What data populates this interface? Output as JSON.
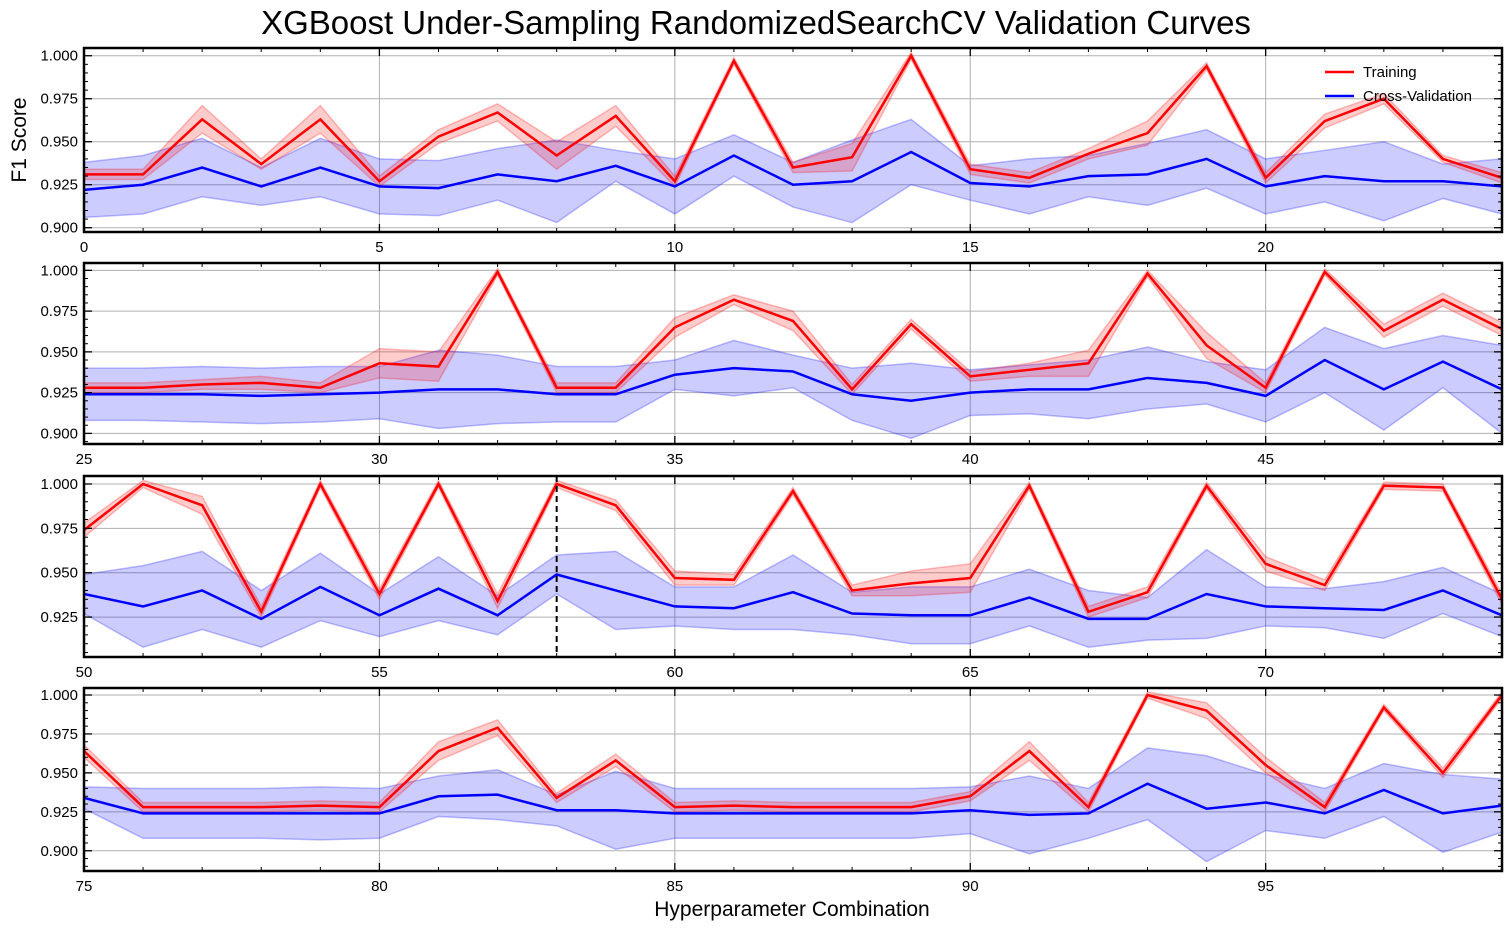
{
  "chart_data": {
    "type": "line",
    "title": "XGBoost Under-Sampling RandomizedSearchCV Validation Curves",
    "xlabel": "Hyperparameter Combination",
    "ylabel": "F1 Score",
    "grid": true,
    "legend": {
      "position": "top-right",
      "entries": [
        "Training",
        "Cross-Validation"
      ]
    },
    "colors": {
      "training": "#ff0000",
      "cv": "#0000ff",
      "training_band": "#ff0000",
      "cv_band": "#0000ff",
      "best_marker": "#000000"
    },
    "best_index": 58,
    "panels": [
      {
        "xlim": [
          0,
          24
        ],
        "ylim": [
          0.8975,
          1.0045
        ],
        "xticks": [
          0,
          5,
          10,
          15,
          20
        ],
        "yticks": [
          0.9,
          0.925,
          0.95,
          0.975,
          1.0
        ],
        "ytick_labels": [
          "0.900",
          "0.925",
          "0.950",
          "0.975",
          "1.000"
        ]
      },
      {
        "xlim": [
          25,
          49
        ],
        "ylim": [
          0.8935,
          1.0045
        ],
        "xticks": [
          25,
          30,
          35,
          40,
          45
        ],
        "yticks": [
          0.9,
          0.925,
          0.95,
          0.975,
          1.0
        ],
        "ytick_labels": [
          "0.900",
          "0.925",
          "0.950",
          "0.975",
          "1.000"
        ]
      },
      {
        "xlim": [
          50,
          74
        ],
        "ylim": [
          0.9025,
          1.0045
        ],
        "xticks": [
          50,
          55,
          60,
          65,
          70
        ],
        "yticks": [
          0.925,
          0.95,
          0.975,
          1.0
        ],
        "ytick_labels": [
          "0.925",
          "0.950",
          "0.975",
          "1.000"
        ]
      },
      {
        "xlim": [
          75,
          99
        ],
        "ylim": [
          0.887,
          1.0045
        ],
        "xticks": [
          75,
          80,
          85,
          90,
          95
        ],
        "yticks": [
          0.9,
          0.925,
          0.95,
          0.975,
          1.0
        ],
        "ytick_labels": [
          "0.900",
          "0.925",
          "0.950",
          "0.975",
          "1.000"
        ]
      }
    ],
    "series": [
      {
        "name": "Training",
        "values": [
          0.931,
          0.931,
          0.963,
          0.937,
          0.963,
          0.927,
          0.953,
          0.967,
          0.942,
          0.965,
          0.927,
          0.997,
          0.935,
          0.941,
          1.0,
          0.934,
          0.929,
          0.943,
          0.955,
          0.994,
          0.929,
          0.962,
          0.975,
          0.94,
          0.929,
          0.928,
          0.928,
          0.93,
          0.931,
          0.928,
          0.943,
          0.941,
          0.999,
          0.928,
          0.928,
          0.965,
          0.982,
          0.969,
          0.927,
          0.967,
          0.935,
          0.939,
          0.943,
          0.998,
          0.954,
          0.928,
          0.999,
          0.963,
          0.982,
          0.964,
          0.974,
          1.0,
          0.988,
          0.928,
          1.0,
          0.938,
          1.0,
          0.934,
          1.0,
          0.988,
          0.947,
          0.946,
          0.996,
          0.94,
          0.944,
          0.947,
          0.999,
          0.928,
          0.939,
          0.999,
          0.955,
          0.943,
          0.999,
          0.998,
          0.935,
          0.964,
          0.928,
          0.928,
          0.928,
          0.929,
          0.928,
          0.964,
          0.979,
          0.934,
          0.958,
          0.928,
          0.929,
          0.928,
          0.928,
          0.928,
          0.935,
          0.964,
          0.928,
          1.0,
          0.99,
          0.955,
          0.928,
          0.992,
          0.95,
          1.0
        ],
        "std": [
          0.003,
          0.003,
          0.008,
          0.003,
          0.008,
          0.003,
          0.004,
          0.005,
          0.008,
          0.006,
          0.003,
          0.002,
          0.003,
          0.008,
          0.002,
          0.003,
          0.003,
          0.003,
          0.007,
          0.002,
          0.003,
          0.004,
          0.003,
          0.002,
          0.003,
          0.003,
          0.003,
          0.003,
          0.004,
          0.003,
          0.009,
          0.009,
          0.002,
          0.003,
          0.003,
          0.006,
          0.003,
          0.006,
          0.003,
          0.003,
          0.003,
          0.004,
          0.008,
          0.002,
          0.008,
          0.003,
          0.002,
          0.004,
          0.004,
          0.004,
          0.004,
          0.002,
          0.005,
          0.003,
          0.002,
          0.003,
          0.002,
          0.004,
          0.002,
          0.003,
          0.004,
          0.003,
          0.002,
          0.003,
          0.007,
          0.008,
          0.002,
          0.003,
          0.003,
          0.002,
          0.004,
          0.003,
          0.002,
          0.002,
          0.003,
          0.004,
          0.003,
          0.003,
          0.003,
          0.003,
          0.003,
          0.006,
          0.005,
          0.003,
          0.004,
          0.003,
          0.003,
          0.003,
          0.003,
          0.003,
          0.003,
          0.006,
          0.003,
          0.002,
          0.005,
          0.005,
          0.003,
          0.002,
          0.003,
          0.002
        ]
      },
      {
        "name": "Cross-Validation",
        "values": [
          0.922,
          0.925,
          0.935,
          0.924,
          0.935,
          0.924,
          0.923,
          0.931,
          0.927,
          0.936,
          0.924,
          0.942,
          0.925,
          0.927,
          0.944,
          0.926,
          0.924,
          0.93,
          0.931,
          0.94,
          0.924,
          0.93,
          0.927,
          0.927,
          0.924,
          0.924,
          0.924,
          0.924,
          0.923,
          0.924,
          0.925,
          0.927,
          0.927,
          0.924,
          0.924,
          0.936,
          0.94,
          0.938,
          0.924,
          0.92,
          0.925,
          0.927,
          0.927,
          0.934,
          0.931,
          0.923,
          0.945,
          0.927,
          0.944,
          0.927,
          0.938,
          0.931,
          0.94,
          0.924,
          0.942,
          0.926,
          0.941,
          0.926,
          0.949,
          0.94,
          0.931,
          0.93,
          0.939,
          0.927,
          0.926,
          0.926,
          0.936,
          0.924,
          0.924,
          0.938,
          0.931,
          0.93,
          0.929,
          0.94,
          0.926,
          0.934,
          0.924,
          0.924,
          0.924,
          0.924,
          0.924,
          0.935,
          0.936,
          0.926,
          0.926,
          0.924,
          0.924,
          0.924,
          0.924,
          0.924,
          0.926,
          0.923,
          0.924,
          0.943,
          0.927,
          0.931,
          0.924,
          0.939,
          0.924,
          0.929
        ],
        "std": [
          0.016,
          0.017,
          0.017,
          0.011,
          0.017,
          0.016,
          0.016,
          0.015,
          0.024,
          0.009,
          0.016,
          0.012,
          0.013,
          0.024,
          0.019,
          0.01,
          0.016,
          0.012,
          0.018,
          0.017,
          0.016,
          0.015,
          0.023,
          0.01,
          0.016,
          0.016,
          0.016,
          0.017,
          0.017,
          0.017,
          0.016,
          0.024,
          0.021,
          0.017,
          0.017,
          0.009,
          0.017,
          0.01,
          0.016,
          0.023,
          0.014,
          0.015,
          0.018,
          0.019,
          0.013,
          0.016,
          0.02,
          0.025,
          0.016,
          0.027,
          0.011,
          0.023,
          0.022,
          0.016,
          0.019,
          0.012,
          0.018,
          0.011,
          0.011,
          0.022,
          0.011,
          0.012,
          0.021,
          0.012,
          0.016,
          0.016,
          0.016,
          0.016,
          0.012,
          0.025,
          0.011,
          0.011,
          0.016,
          0.013,
          0.012,
          0.007,
          0.016,
          0.016,
          0.016,
          0.017,
          0.016,
          0.013,
          0.016,
          0.01,
          0.025,
          0.016,
          0.016,
          0.016,
          0.016,
          0.016,
          0.015,
          0.025,
          0.016,
          0.023,
          0.034,
          0.018,
          0.016,
          0.017,
          0.025,
          0.017
        ]
      }
    ]
  }
}
